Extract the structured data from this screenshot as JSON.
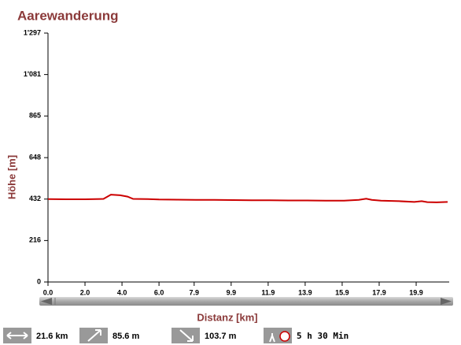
{
  "chart_data": {
    "type": "line",
    "title": "Aarewanderung",
    "x_label": "Distanz [km]",
    "y_label": "Höhe [m]",
    "x": [
      0,
      1.0,
      2.0,
      3.0,
      3.4,
      3.9,
      4.3,
      4.6,
      5.4,
      6.0,
      7.0,
      8.0,
      9.0,
      10.0,
      11.0,
      12.0,
      13.0,
      14.0,
      15.0,
      16.0,
      16.8,
      17.2,
      17.5,
      18.0,
      19.0,
      19.8,
      20.2,
      20.5,
      21.0,
      21.6
    ],
    "values": [
      432,
      431,
      431,
      433,
      455,
      452,
      445,
      433,
      432,
      430,
      429,
      428,
      428,
      427,
      426,
      426,
      425,
      425,
      424,
      424,
      428,
      434,
      428,
      424,
      421,
      417,
      421,
      416,
      415,
      417
    ],
    "color": "#cc0000",
    "xlim": [
      0,
      21.6
    ],
    "xticks": [
      {
        "value": 0,
        "label": "0.0"
      },
      {
        "value": 2,
        "label": "2.0"
      },
      {
        "value": 4,
        "label": "4.0"
      },
      {
        "value": 6,
        "label": "6.0"
      },
      7.9,
      9.9,
      11.9,
      13.9,
      15.9,
      17.9,
      19.9
    ],
    "ylim": [
      0,
      1297
    ],
    "yticks": [
      0,
      216,
      432,
      648,
      865,
      {
        "value": 1081,
        "label": "1'081"
      },
      {
        "value": 1297,
        "label": "1'297"
      }
    ]
  },
  "footer": {
    "distance": "21.6 km",
    "ascent": "85.6 m",
    "descent": "103.7 m",
    "time": "5 h 30 Min"
  }
}
